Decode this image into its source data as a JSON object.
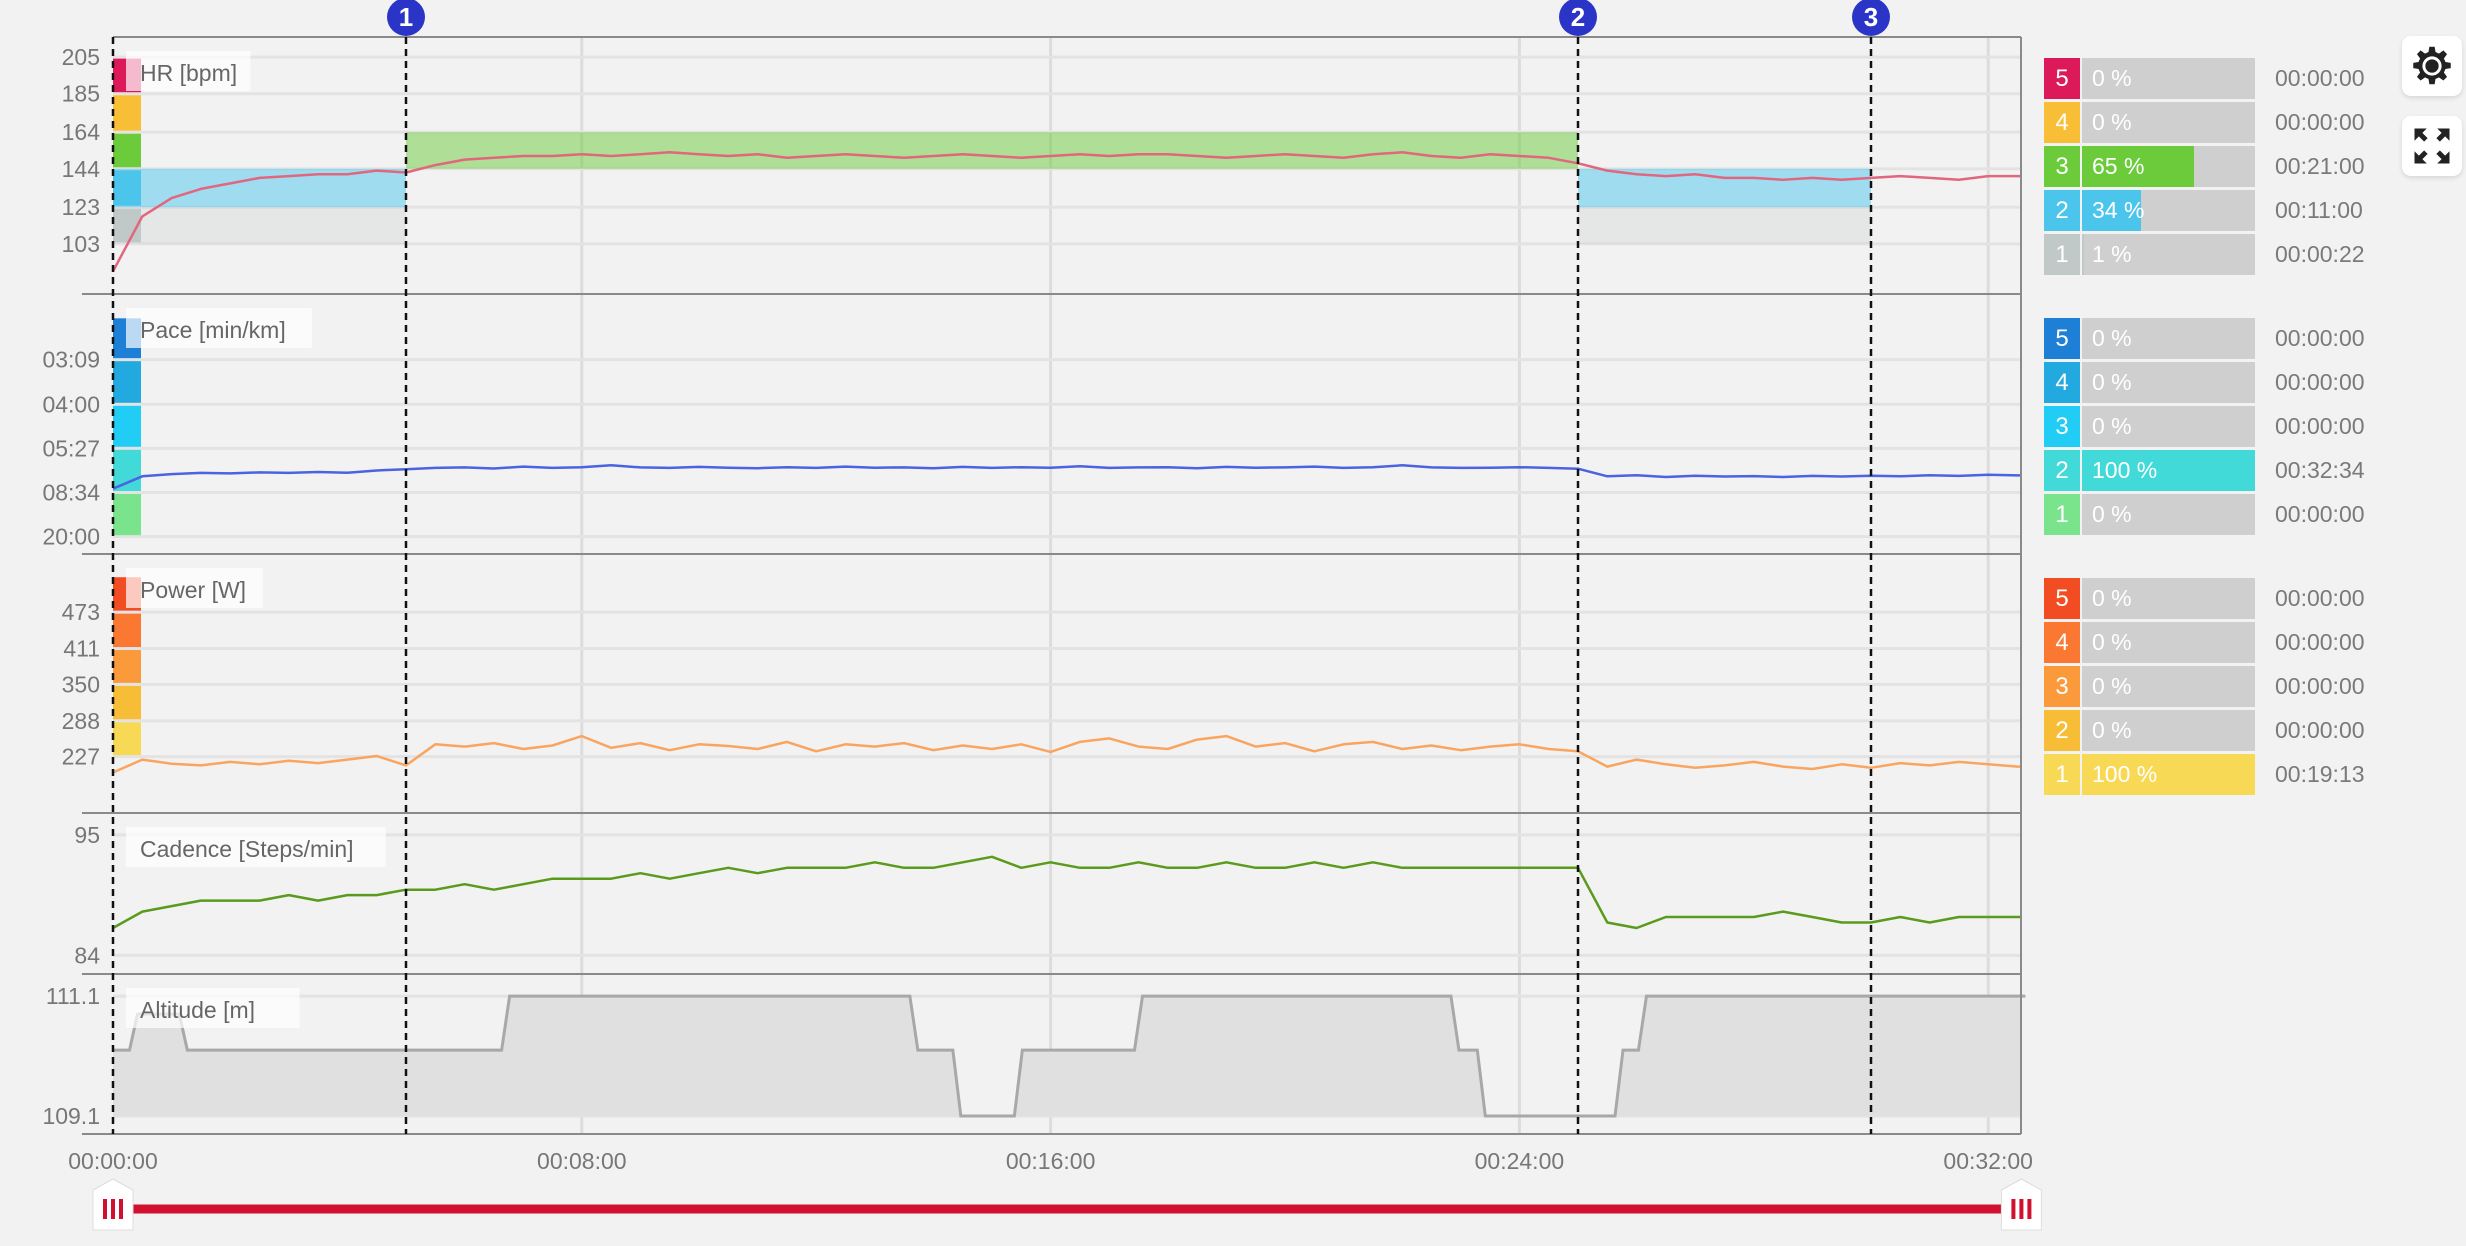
{
  "x_axis": {
    "ticks": [
      "00:00:00",
      "00:08:00",
      "00:16:00",
      "00:24:00",
      "00:32:00"
    ],
    "duration": "00:32:34"
  },
  "intervals": [
    {
      "label": "",
      "time": "00:00:00"
    },
    {
      "label": "1",
      "time": "00:05:00"
    },
    {
      "label": "2",
      "time": "00:25:00"
    },
    {
      "label": "3",
      "time": "00:30:00"
    }
  ],
  "marker_color": "#2a35c8",
  "chart_data": [
    {
      "type": "line",
      "key": "hr",
      "title": "HR [bpm]",
      "yticks": [
        "103",
        "123",
        "144",
        "164",
        "185",
        "205"
      ],
      "ylim": [
        75.6,
        216
      ],
      "zone_bounds": [
        103,
        123,
        144,
        164,
        185,
        205
      ],
      "zone_colors": [
        "#c0c8c8",
        "#4cc5ec",
        "#6ccb3a",
        "#f8bf36",
        "#dc1a5a"
      ],
      "target_bands": [
        {
          "from": "00:00:00",
          "to": "00:05:00",
          "zones": [
            1,
            2
          ]
        },
        {
          "from": "00:05:00",
          "to": "00:25:00",
          "zones": [
            3
          ]
        },
        {
          "from": "00:25:00",
          "to": "00:30:00",
          "zones": [
            1,
            2
          ]
        }
      ],
      "line_color": "#e0677e",
      "values": [
        88,
        118,
        128,
        133,
        136,
        139,
        140,
        141,
        141,
        143,
        142,
        146,
        149,
        150,
        151,
        151,
        152,
        151,
        152,
        153,
        152,
        151,
        152,
        150,
        151,
        152,
        151,
        150,
        151,
        152,
        151,
        150,
        151,
        152,
        151,
        152,
        152,
        151,
        150,
        151,
        152,
        151,
        150,
        152,
        153,
        151,
        150,
        152,
        151,
        150,
        147,
        143,
        141,
        140,
        141,
        139,
        139,
        138,
        139,
        138,
        139,
        140,
        139,
        138,
        140,
        140
      ]
    },
    {
      "type": "line",
      "key": "pace",
      "title": "Pace [min/km]",
      "yticks": [
        "03:09",
        "04:00",
        "05:27",
        "08:34",
        "20:00"
      ],
      "ylim": [
        "42:00",
        "02:24"
      ],
      "zone_bounds": [
        "20:00",
        "08:34",
        "05:27",
        "04:00",
        "03:09",
        "02:37"
      ],
      "zone_colors": [
        "#7ae48c",
        "#42d9d9",
        "#22cdf5",
        "#22a9e0",
        "#1e7fd6"
      ],
      "line_color": "#4b63e0",
      "values": [
        "8:10",
        "7:05",
        "6:55",
        "6:50",
        "6:52",
        "6:48",
        "6:50",
        "6:46",
        "6:49",
        "6:40",
        "6:35",
        "6:30",
        "6:28",
        "6:32",
        "6:25",
        "6:30",
        "6:27",
        "6:20",
        "6:28",
        "6:30",
        "6:26",
        "6:29",
        "6:31",
        "6:27",
        "6:30",
        "6:25",
        "6:29",
        "6:28",
        "6:31",
        "6:26",
        "6:30",
        "6:27",
        "6:29",
        "6:24",
        "6:30",
        "6:28",
        "6:27",
        "6:31",
        "6:26",
        "6:29",
        "6:28",
        "6:25",
        "6:30",
        "6:27",
        "6:20",
        "6:28",
        "6:30",
        "6:29",
        "6:27",
        "6:30",
        "6:33",
        "7:05",
        "7:00",
        "7:08",
        "7:02",
        "7:06",
        "7:04",
        "7:08",
        "7:03",
        "7:06",
        "7:02",
        "7:05",
        "7:00",
        "7:03",
        "6:58",
        "7:01"
      ]
    },
    {
      "type": "line",
      "key": "power",
      "title": "Power [W]",
      "yticks": [
        "227",
        "288",
        "350",
        "411",
        "473"
      ],
      "ylim": [
        131,
        572
      ],
      "zone_bounds": [
        227,
        288,
        350,
        411,
        473,
        535
      ],
      "zone_colors": [
        "#f7d955",
        "#f8bd36",
        "#fb9a3a",
        "#fb7832",
        "#f24c22"
      ],
      "line_color": "#f9a560",
      "values": [
        200,
        222,
        215,
        212,
        218,
        214,
        220,
        216,
        222,
        228,
        212,
        248,
        244,
        250,
        240,
        246,
        262,
        242,
        250,
        238,
        248,
        245,
        240,
        252,
        236,
        248,
        244,
        250,
        238,
        246,
        240,
        248,
        235,
        252,
        258,
        244,
        240,
        256,
        262,
        244,
        250,
        236,
        248,
        252,
        240,
        246,
        238,
        244,
        248,
        240,
        236,
        210,
        222,
        214,
        208,
        212,
        218,
        210,
        206,
        214,
        208,
        216,
        212,
        218,
        214,
        210
      ]
    },
    {
      "type": "line",
      "key": "cadence",
      "title": "Cadence [Steps/min]",
      "yticks": [
        "84",
        "95"
      ],
      "ylim": [
        82.3,
        97
      ],
      "line_color": "#5a9a1c",
      "values": [
        86.5,
        88,
        88.5,
        89,
        89,
        89,
        89.5,
        89,
        89.5,
        89.5,
        90,
        90,
        90.5,
        90,
        90.5,
        91,
        91,
        91,
        91.5,
        91,
        91.5,
        92,
        91.5,
        92,
        92,
        92,
        92.5,
        92,
        92,
        92.5,
        93,
        92,
        92.5,
        92,
        92,
        92.5,
        92,
        92,
        92.5,
        92,
        92,
        92.5,
        92,
        92.5,
        92,
        92,
        92,
        92,
        92,
        92,
        92,
        87,
        86.5,
        87.5,
        87.5,
        87.5,
        87.5,
        88,
        87.5,
        87,
        87,
        87.5,
        87,
        87.5,
        87.5,
        87.5
      ]
    },
    {
      "type": "area",
      "key": "altitude",
      "title": "Altitude [m]",
      "yticks": [
        "109.1",
        "111.1"
      ],
      "ylim": [
        108.8,
        111.47
      ],
      "line_color": "#a8a8a8",
      "fill_color": "#e0e0e0",
      "steps": [
        [
          "00:00:00",
          110.2
        ],
        [
          "00:00:21",
          110.8
        ],
        [
          "00:01:12",
          110.2
        ],
        [
          "00:06:42",
          111.1
        ],
        [
          "00:13:40",
          110.2
        ],
        [
          "00:14:24",
          109.1
        ],
        [
          "00:15:27",
          110.2
        ],
        [
          "00:17:30",
          111.1
        ],
        [
          "00:22:54",
          110.2
        ],
        [
          "00:23:21",
          109.1
        ],
        [
          "00:25:42",
          110.2
        ],
        [
          "00:26:06",
          111.1
        ],
        [
          "00:32:34",
          111.1
        ]
      ]
    }
  ],
  "sample_times": [
    "00:00:00",
    "00:00:30",
    "00:01:00",
    "00:01:30",
    "00:02:00",
    "00:02:30",
    "00:03:00",
    "00:03:30",
    "00:04:00",
    "00:04:30",
    "00:05:00",
    "00:05:30",
    "00:06:00",
    "00:06:30",
    "00:07:00",
    "00:07:30",
    "00:08:00",
    "00:08:30",
    "00:09:00",
    "00:09:30",
    "00:10:00",
    "00:10:30",
    "00:11:00",
    "00:11:30",
    "00:12:00",
    "00:12:30",
    "00:13:00",
    "00:13:30",
    "00:14:00",
    "00:14:30",
    "00:15:00",
    "00:15:30",
    "00:16:00",
    "00:16:30",
    "00:17:00",
    "00:17:30",
    "00:18:00",
    "00:18:30",
    "00:19:00",
    "00:19:30",
    "00:20:00",
    "00:20:30",
    "00:21:00",
    "00:21:30",
    "00:22:00",
    "00:22:30",
    "00:23:00",
    "00:23:30",
    "00:24:00",
    "00:24:30",
    "00:25:00",
    "00:25:30",
    "00:26:00",
    "00:26:30",
    "00:27:00",
    "00:27:30",
    "00:28:00",
    "00:28:30",
    "00:29:00",
    "00:29:30",
    "00:30:00",
    "00:30:30",
    "00:31:00",
    "00:31:30",
    "00:32:00",
    "00:32:30"
  ],
  "zone_summary": {
    "hr": [
      {
        "zone": "5",
        "percent": "0 %",
        "fill": 0,
        "time": "00:00:00",
        "color": "#dc1a5a"
      },
      {
        "zone": "4",
        "percent": "0 %",
        "fill": 0,
        "time": "00:00:00",
        "color": "#f8bf36"
      },
      {
        "zone": "3",
        "percent": "65 %",
        "fill": 65,
        "time": "00:21:00",
        "color": "#6ccb3a"
      },
      {
        "zone": "2",
        "percent": "34 %",
        "fill": 34,
        "time": "00:11:00",
        "color": "#4cc5ec"
      },
      {
        "zone": "1",
        "percent": "1 %",
        "fill": 1,
        "time": "00:00:22",
        "color": "#c0c8c8"
      }
    ],
    "pace": [
      {
        "zone": "5",
        "percent": "0 %",
        "fill": 0,
        "time": "00:00:00",
        "color": "#1e7fd6"
      },
      {
        "zone": "4",
        "percent": "0 %",
        "fill": 0,
        "time": "00:00:00",
        "color": "#22a9e0"
      },
      {
        "zone": "3",
        "percent": "0 %",
        "fill": 0,
        "time": "00:00:00",
        "color": "#22cdf5"
      },
      {
        "zone": "2",
        "percent": "100 %",
        "fill": 100,
        "time": "00:32:34",
        "color": "#42d9d9"
      },
      {
        "zone": "1",
        "percent": "0 %",
        "fill": 0,
        "time": "00:00:00",
        "color": "#7ae48c"
      }
    ],
    "power": [
      {
        "zone": "5",
        "percent": "0 %",
        "fill": 0,
        "time": "00:00:00",
        "color": "#f24c22"
      },
      {
        "zone": "4",
        "percent": "0 %",
        "fill": 0,
        "time": "00:00:00",
        "color": "#fb7832"
      },
      {
        "zone": "3",
        "percent": "0 %",
        "fill": 0,
        "time": "00:00:00",
        "color": "#fb9a3a"
      },
      {
        "zone": "2",
        "percent": "0 %",
        "fill": 0,
        "time": "00:00:00",
        "color": "#f8bd36"
      },
      {
        "zone": "1",
        "percent": "100 %",
        "fill": 100,
        "time": "00:19:13",
        "color": "#f7d955"
      }
    ]
  },
  "range_slider": {
    "color": "#d0102e",
    "start": "00:00:00",
    "end": "00:32:34"
  },
  "toolbar": {
    "settings_icon": "gear-icon",
    "fullscreen_icon": "expand-icon"
  }
}
